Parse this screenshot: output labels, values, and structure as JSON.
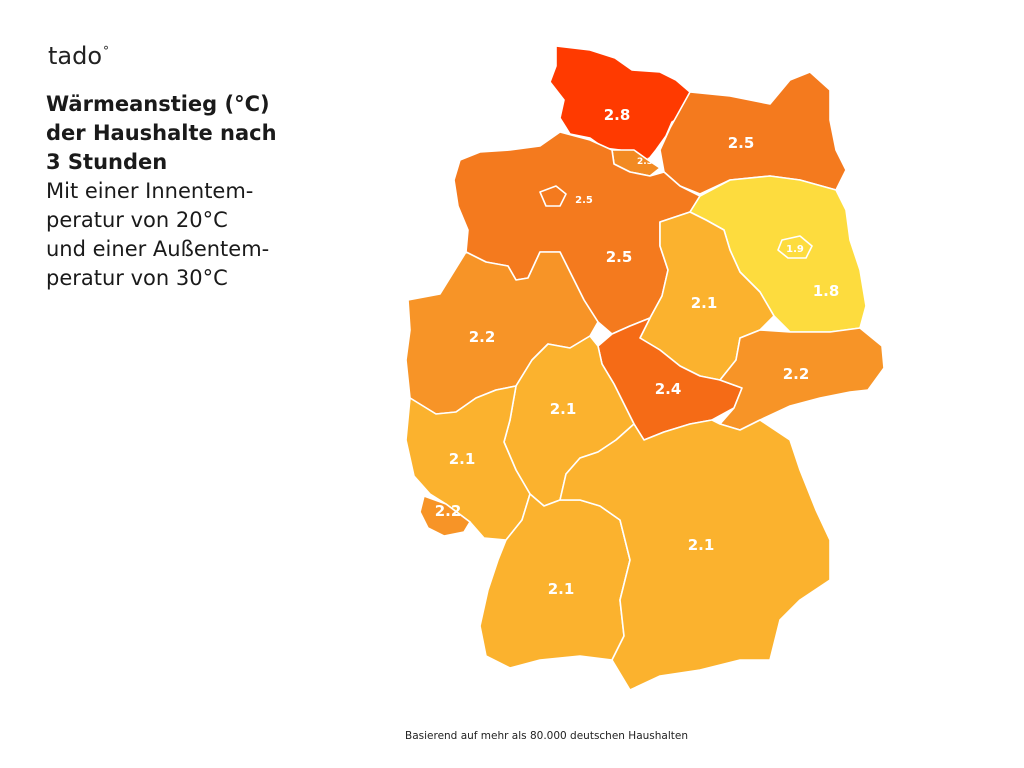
{
  "brand": {
    "name": "tado",
    "ring": "°"
  },
  "title": {
    "line1": "Wärmeanstieg (°C)",
    "line2": "der Haushalte nach",
    "line3": "3 Stunden",
    "line4": "Mit einer Innentem-",
    "line5": "peratur von 20°C",
    "line6": "und einer Außentem-",
    "line7": "peratur von 30°C"
  },
  "footer": "Basierend auf mehr als 80.000 deutschen Haushalten",
  "colors": {
    "c28": "#ff3a00",
    "c25": "#f47a1e",
    "c24": "#f56b16",
    "c23": "#f28a22",
    "c22": "#f79427",
    "c21": "#fbb22e",
    "c19": "#fddc3e",
    "c18": "#fddc3e",
    "border": "#ffffff"
  },
  "regions": [
    {
      "name": "Schleswig-Holstein",
      "value": "2.8"
    },
    {
      "name": "Hamburg",
      "value": "2.3"
    },
    {
      "name": "Mecklenburg-Vorpommern",
      "value": "2.5"
    },
    {
      "name": "Bremen",
      "value": "2.5"
    },
    {
      "name": "Niedersachsen",
      "value": "2.5"
    },
    {
      "name": "Brandenburg",
      "value": "1.8"
    },
    {
      "name": "Berlin",
      "value": "1.9"
    },
    {
      "name": "Sachsen-Anhalt",
      "value": "2.1"
    },
    {
      "name": "Nordrhein-Westfalen",
      "value": "2.2"
    },
    {
      "name": "Thüringen",
      "value": "2.4"
    },
    {
      "name": "Sachsen",
      "value": "2.2"
    },
    {
      "name": "Hessen",
      "value": "2.1"
    },
    {
      "name": "Rheinland-Pfalz",
      "value": "2.1"
    },
    {
      "name": "Saarland",
      "value": "2.2"
    },
    {
      "name": "Bayern",
      "value": "2.1"
    },
    {
      "name": "Baden-Württemberg",
      "value": "2.1"
    }
  ]
}
